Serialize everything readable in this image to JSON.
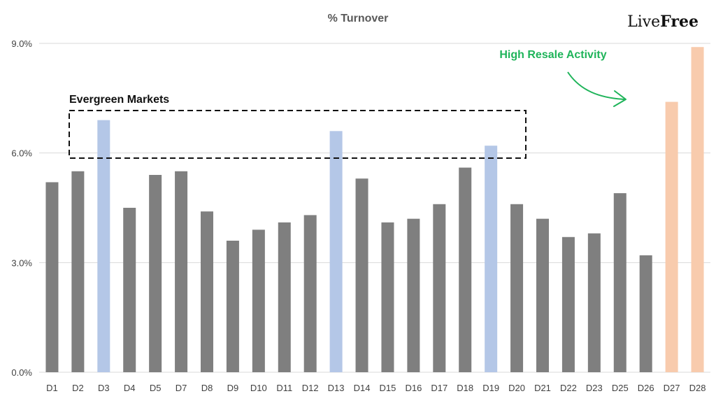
{
  "logo": {
    "part1": "Live",
    "part2": "Free"
  },
  "chart_data": {
    "type": "bar",
    "title": "% Turnover",
    "xlabel": "",
    "ylabel": "",
    "ylim": [
      0,
      9
    ],
    "yticks": [
      {
        "value": 0,
        "label": "0.0%"
      },
      {
        "value": 3,
        "label": "3.0%"
      },
      {
        "value": 6,
        "label": "6.0%"
      },
      {
        "value": 9,
        "label": "9.0%"
      }
    ],
    "grid": true,
    "legend": "none",
    "categories": [
      "D1",
      "D2",
      "D3",
      "D4",
      "D5",
      "D7",
      "D8",
      "D9",
      "D10",
      "D11",
      "D12",
      "D13",
      "D14",
      "D15",
      "D16",
      "D17",
      "D18",
      "D19",
      "D20",
      "D21",
      "D22",
      "D23",
      "D25",
      "D26",
      "D27",
      "D28"
    ],
    "values": [
      5.2,
      5.5,
      6.9,
      4.5,
      5.4,
      5.5,
      4.4,
      3.6,
      3.9,
      4.1,
      4.3,
      6.6,
      5.3,
      4.1,
      4.2,
      4.6,
      5.6,
      6.2,
      4.6,
      4.2,
      3.7,
      3.8,
      4.9,
      3.2,
      7.4,
      8.9
    ],
    "groups": [
      "default",
      "default",
      "evergreen",
      "default",
      "default",
      "default",
      "default",
      "default",
      "default",
      "default",
      "default",
      "evergreen",
      "default",
      "default",
      "default",
      "default",
      "default",
      "evergreen",
      "default",
      "default",
      "default",
      "default",
      "default",
      "default",
      "resale",
      "resale"
    ],
    "colors": {
      "default": "#7f7f7f",
      "evergreen": "#b4c7e7",
      "resale": "#f8cbad",
      "grid": "#d9d9d9",
      "annotation_green": "#1fb45a"
    },
    "annotations": [
      {
        "text": "Evergreen Markets",
        "target": [
          "D3",
          "D13",
          "D19"
        ],
        "style": "dashed-box"
      },
      {
        "text": "High Resale Activity",
        "target": [
          "D27",
          "D28"
        ],
        "style": "arrow"
      }
    ]
  }
}
